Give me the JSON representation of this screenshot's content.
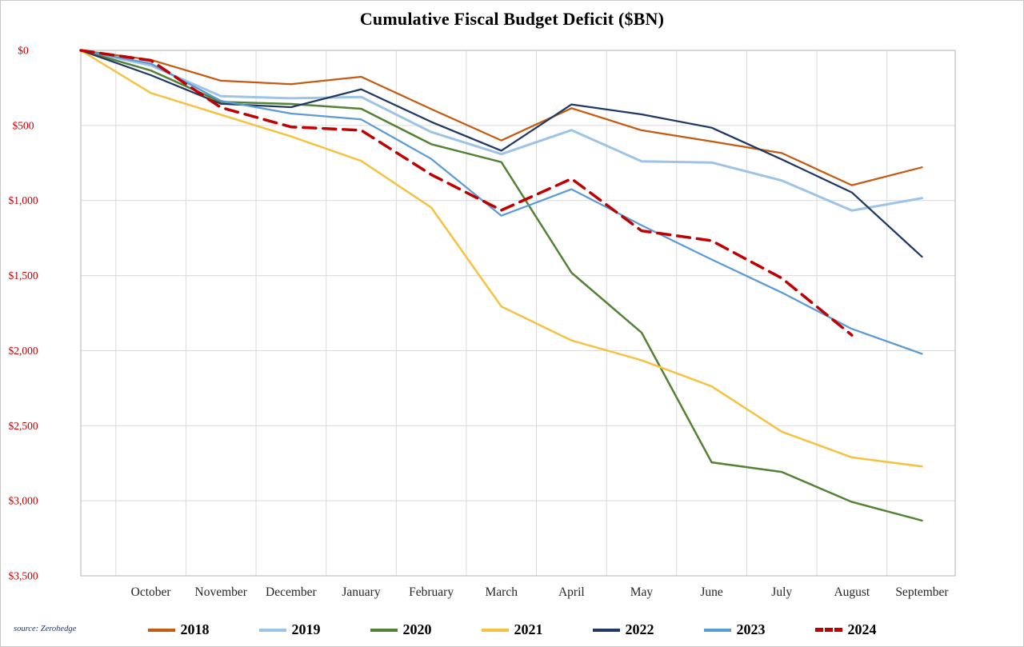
{
  "source_note": "source: Zerohedge",
  "chart_data": {
    "type": "line",
    "title": "Cumulative Fiscal Budget Deficit ($BN)",
    "x_categories": [
      "October",
      "November",
      "December",
      "January",
      "February",
      "March",
      "April",
      "May",
      "June",
      "July",
      "August",
      "September"
    ],
    "y_ticks": [
      "$0",
      "$500",
      "$1,000",
      "$1,500",
      "$2,000",
      "$2,500",
      "$3,000",
      "$3,500"
    ],
    "ylim": [
      0,
      3500
    ],
    "grid": true,
    "legend_position": "bottom",
    "axis_label_color": "#C00000",
    "gridline_color": "#D9D9D9",
    "series": [
      {
        "name": "2018",
        "color": "#C55A11",
        "stroke_width": 2.25,
        "dash": false,
        "values": [
          0,
          63,
          202,
          225,
          176,
          391,
          600,
          385,
          532,
          607,
          684,
          898,
          779
        ]
      },
      {
        "name": "2019",
        "color": "#9DC3E6",
        "stroke_width": 3,
        "dash": false,
        "values": [
          0,
          100,
          305,
          319,
          310,
          544,
          691,
          531,
          739,
          747,
          867,
          1067,
          984
        ]
      },
      {
        "name": "2020",
        "color": "#548235",
        "stroke_width": 2.5,
        "dash": false,
        "values": [
          0,
          134,
          343,
          357,
          389,
          625,
          744,
          1481,
          1880,
          2744,
          2808,
          3008,
          3132
        ]
      },
      {
        "name": "2021",
        "color": "#F5C242",
        "stroke_width": 2.5,
        "dash": false,
        "values": [
          0,
          284,
          429,
          573,
          736,
          1047,
          1706,
          1932,
          2064,
          2238,
          2540,
          2711,
          2772
        ]
      },
      {
        "name": "2022",
        "color": "#203864",
        "stroke_width": 2.25,
        "dash": false,
        "values": [
          0,
          165,
          356,
          378,
          259,
          476,
          668,
          360,
          426,
          515,
          726,
          946,
          1375
        ]
      },
      {
        "name": "2023",
        "color": "#5B9BD5",
        "stroke_width": 2.25,
        "dash": false,
        "values": [
          0,
          88,
          336,
          421,
          460,
          723,
          1101,
          925,
          1165,
          1393,
          1613,
          1855,
          2021
        ]
      },
      {
        "name": "2024",
        "color": "#C00000",
        "stroke_width": 3.5,
        "dash": true,
        "values": [
          0,
          67,
          381,
          510,
          532,
          828,
          1065,
          855,
          1202,
          1268,
          1517,
          1897
        ]
      }
    ]
  }
}
